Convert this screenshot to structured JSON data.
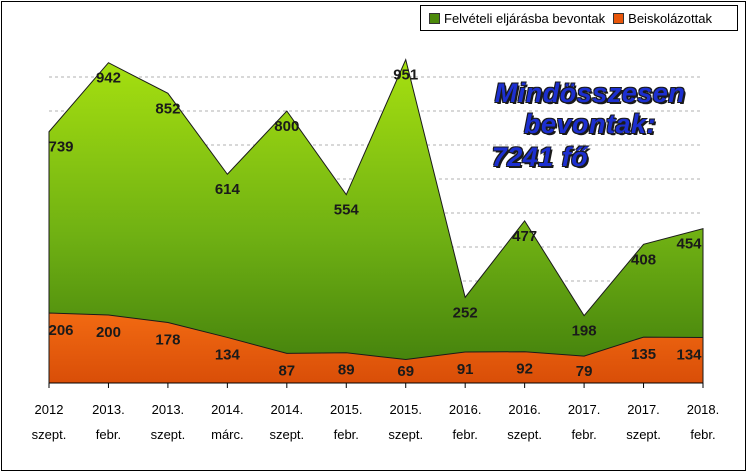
{
  "chart_data": {
    "type": "area",
    "categories": [
      [
        "2012",
        "szept."
      ],
      [
        "2013.",
        "febr."
      ],
      [
        "2013.",
        "szept."
      ],
      [
        "2014.",
        "márc."
      ],
      [
        "2014.",
        "szept."
      ],
      [
        "2015.",
        "febr."
      ],
      [
        "2015.",
        "szept."
      ],
      [
        "2016.",
        "febr."
      ],
      [
        "2016.",
        "szept."
      ],
      [
        "2017.",
        "febr."
      ],
      [
        "2017.",
        "szept."
      ],
      [
        "2018.",
        "febr."
      ]
    ],
    "series": [
      {
        "name": "Felvételi eljárásba bevontak",
        "values": [
          739,
          942,
          852,
          614,
          800,
          554,
          951,
          252,
          477,
          198,
          408,
          454
        ],
        "color": "#4c8a0a"
      },
      {
        "name": "Beiskolázottak",
        "values": [
          206,
          200,
          178,
          134,
          87,
          89,
          69,
          91,
          92,
          79,
          135,
          134
        ],
        "color": "#e8560a"
      }
    ],
    "ylim": [
      0,
      1000
    ],
    "legend_position": "top-right",
    "annotation": [
      "Mindösszesen bevontak:",
      "7241 fő"
    ]
  }
}
